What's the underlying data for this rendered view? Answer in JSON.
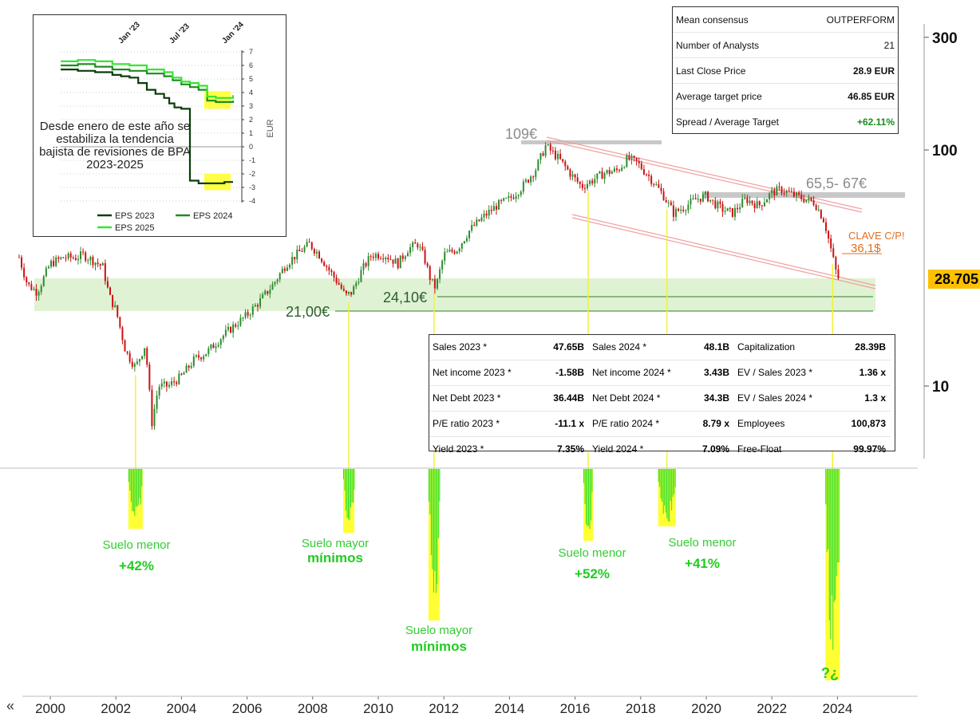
{
  "chart_data": [
    {
      "type": "line",
      "subtype": "candlestick",
      "scale": "log",
      "x_ticks": [
        "2000",
        "2002",
        "2004",
        "2006",
        "2008",
        "2010",
        "2012",
        "2014",
        "2016",
        "2018",
        "2020",
        "2022",
        "2024"
      ],
      "y_ticks": [
        "300",
        "100",
        "10"
      ],
      "ylim": [
        5,
        380
      ],
      "last_price": "28.705",
      "series": [
        {
          "x": [
            1999.0,
            1999.3,
            1999.6,
            2000.0,
            2000.4,
            2000.8,
            2001.0,
            2001.3,
            2001.6,
            2001.8,
            2002.0,
            2002.3,
            2002.6,
            2002.9,
            2003.1,
            2003.3,
            2003.6,
            2004.0,
            2004.4,
            2004.8,
            2005.2,
            2005.6,
            2006.0,
            2006.4,
            2006.8,
            2007.2,
            2007.6,
            2007.9,
            2008.2,
            2008.5,
            2008.8,
            2009.0,
            2009.2,
            2009.5,
            2009.8,
            2010.2,
            2010.6,
            2010.9,
            2011.2,
            2011.4,
            2011.6,
            2011.75,
            2012.0,
            2012.4,
            2012.8,
            2013.2,
            2013.6,
            2014.0,
            2014.4,
            2014.8,
            2015.1,
            2015.5,
            2015.9,
            2016.2,
            2016.5,
            2016.9,
            2017.3,
            2017.6,
            2017.9,
            2018.3,
            2018.7,
            2019.0,
            2019.3,
            2019.7,
            2020.0,
            2020.2,
            2020.5,
            2020.8,
            2021.2,
            2021.6,
            2022.0,
            2022.3,
            2022.7,
            2023.0,
            2023.3,
            2023.6,
            2023.8,
            2024.0
          ],
          "y": [
            37,
            27,
            25,
            33,
            35,
            35,
            36,
            34,
            32,
            24,
            21,
            14,
            12,
            15,
            7,
            10,
            10,
            11,
            13,
            14,
            16,
            18,
            20,
            23,
            27,
            33,
            37,
            40,
            36,
            31,
            27,
            24,
            25,
            31,
            36,
            36,
            33,
            38,
            40,
            35,
            28,
            26,
            36,
            38,
            46,
            52,
            58,
            62,
            70,
            83,
            104,
            92,
            78,
            70,
            74,
            80,
            82,
            92,
            88,
            76,
            64,
            54,
            57,
            62,
            64,
            60,
            56,
            54,
            62,
            58,
            66,
            68,
            64,
            62,
            60,
            50,
            38,
            28.7
          ]
        }
      ],
      "annotations": {
        "level_109": "109€",
        "level_65": "65,5- 67€",
        "clave_title": "CLAVE C/P!",
        "clave_value": "36,1$",
        "support_24": "24,10€",
        "support_21": "21,00€"
      }
    },
    {
      "type": "line",
      "ylabel": "EUR",
      "x_ticks": [
        "Jan '23",
        "Jul '23",
        "Jan '24"
      ],
      "y_ticks": [
        "7",
        "6",
        "5",
        "4",
        "3",
        "2",
        "1",
        "0",
        "-1",
        "-2",
        "-3",
        "-4"
      ],
      "ylim": [
        -4,
        7
      ],
      "series": [
        {
          "name": "EPS 2023",
          "color": "#0a3d0a",
          "x": [
            0,
            0.1,
            0.2,
            0.3,
            0.35,
            0.4,
            0.45,
            0.5,
            0.55,
            0.6,
            0.63,
            0.66,
            0.7,
            0.75,
            0.8,
            0.85,
            0.9,
            0.95,
            1.0
          ],
          "y": [
            5.7,
            5.6,
            5.5,
            5.3,
            5.2,
            5.1,
            4.7,
            4.2,
            3.9,
            3.6,
            3.2,
            2.9,
            2.8,
            -2.5,
            -2.7,
            -2.7,
            -2.7,
            -2.6,
            -2.6
          ]
        },
        {
          "name": "EPS 2024",
          "color": "#1e8c1e",
          "x": [
            0,
            0.1,
            0.2,
            0.3,
            0.4,
            0.5,
            0.6,
            0.65,
            0.7,
            0.75,
            0.8,
            0.85,
            0.9,
            0.95,
            1.0
          ],
          "y": [
            6.0,
            6.1,
            5.9,
            5.7,
            5.6,
            5.4,
            5.2,
            4.9,
            4.6,
            4.4,
            4.2,
            3.4,
            3.3,
            3.3,
            3.4
          ]
        },
        {
          "name": "EPS 2025",
          "color": "#33e633",
          "x": [
            0,
            0.1,
            0.2,
            0.3,
            0.4,
            0.5,
            0.6,
            0.65,
            0.7,
            0.75,
            0.8,
            0.85,
            0.9,
            0.95,
            1.0
          ],
          "y": [
            6.3,
            6.4,
            6.3,
            6.1,
            6.0,
            5.7,
            5.5,
            5.1,
            4.8,
            4.7,
            4.5,
            3.7,
            3.6,
            3.6,
            3.8
          ]
        }
      ]
    },
    {
      "type": "bar",
      "name": "oscillator",
      "regions": [
        {
          "x": 2002.6,
          "label": "Suelo menor",
          "pct": "+42%"
        },
        {
          "x": 2009.1,
          "label": "Suelo mayor",
          "pct": "mínimos"
        },
        {
          "x": 2011.7,
          "label": "Suelo mayor",
          "pct": "mínimos"
        },
        {
          "x": 2016.4,
          "label": "Suelo menor",
          "pct": "+52%"
        },
        {
          "x": 2018.8,
          "label": "Suelo menor",
          "pct": "+41%"
        },
        {
          "x": 2023.85,
          "label": "",
          "pct": "?¿"
        }
      ]
    }
  ],
  "inset": {
    "note": "Desde enero de este año se estabiliza la tendencia bajista de revisiones de BPA 2023-2025",
    "legend": [
      "EPS 2023",
      "EPS 2024",
      "EPS 2025"
    ]
  },
  "consensus": {
    "rows": [
      {
        "label": "Mean consensus",
        "value": "OUTPERFORM"
      },
      {
        "label": "Number of Analysts",
        "value": "21"
      },
      {
        "label": "Last Close Price",
        "value": "28.9  EUR"
      },
      {
        "label": "Average target price",
        "value": "46.85  EUR"
      },
      {
        "label": "Spread / Average Target",
        "value": "+62.11%"
      }
    ],
    "spread_color": "#1a8c1a"
  },
  "fundamentals": {
    "rows": [
      [
        "Sales 2023 *",
        "47.65B",
        "Sales 2024 *",
        "48.1B",
        "Capitalization",
        "28.39B"
      ],
      [
        "Net income 2023 *",
        "-1.58B",
        "Net income 2024 *",
        "3.43B",
        "EV / Sales 2023 *",
        "1.36 x"
      ],
      [
        "Net Debt 2023 *",
        "36.44B",
        "Net Debt 2024 *",
        "34.3B",
        "EV / Sales 2024 *",
        "1.3 x"
      ],
      [
        "P/E ratio 2023 *",
        "-11.1 x",
        "P/E ratio 2024 *",
        "8.79 x",
        "Employees",
        "100,873"
      ],
      [
        "Yield 2023 *",
        "7.35%",
        "Yield 2024 *",
        "7.09%",
        "Free-Float",
        "99.97%"
      ]
    ]
  },
  "nav": {
    "scroll_left": "«"
  },
  "colors": {
    "up": "#2e8b2e",
    "down": "#cc1111",
    "highlight": "#ffff33",
    "band": "#dff2d3",
    "accent_green": "#33dd33",
    "clave": "#e07020",
    "price_tag": "#ffc000"
  }
}
